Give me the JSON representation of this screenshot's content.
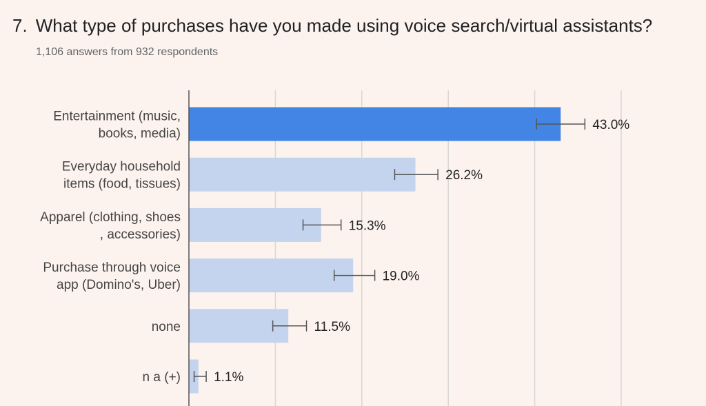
{
  "question": {
    "number": "7.",
    "title": "What type of purchases have you made using voice search/virtual assistants?",
    "subtitle": "1,106 answers from 932 respondents"
  },
  "colors": {
    "highlight": "#4285e4",
    "bar": "#c5d4ee",
    "grid": "#d9d6d2",
    "axis": "#555555",
    "errorbar": "#555555"
  },
  "chart_data": {
    "type": "bar",
    "orientation": "horizontal",
    "xlim": [
      0,
      50
    ],
    "grid": true,
    "categories": [
      [
        "Entertainment (music,",
        "books, media)"
      ],
      [
        "Everyday household",
        "items (food, tissues)"
      ],
      [
        "Apparel (clothing, shoes",
        ", accessories)"
      ],
      [
        "Purchase through voice",
        "app (Domino's, Uber)"
      ],
      [
        "none"
      ],
      [
        "n a (+)"
      ]
    ],
    "values": [
      43.0,
      26.2,
      15.3,
      19.0,
      11.5,
      1.1
    ],
    "labels": [
      "43.0%",
      "26.2%",
      "15.3%",
      "19.0%",
      "11.5%",
      "1.1%"
    ],
    "error_low": [
      40.2,
      23.8,
      13.2,
      16.8,
      9.7,
      0.6
    ],
    "error_high": [
      45.8,
      28.8,
      17.6,
      21.5,
      13.6,
      2.0
    ],
    "highlighted_index": 0
  }
}
